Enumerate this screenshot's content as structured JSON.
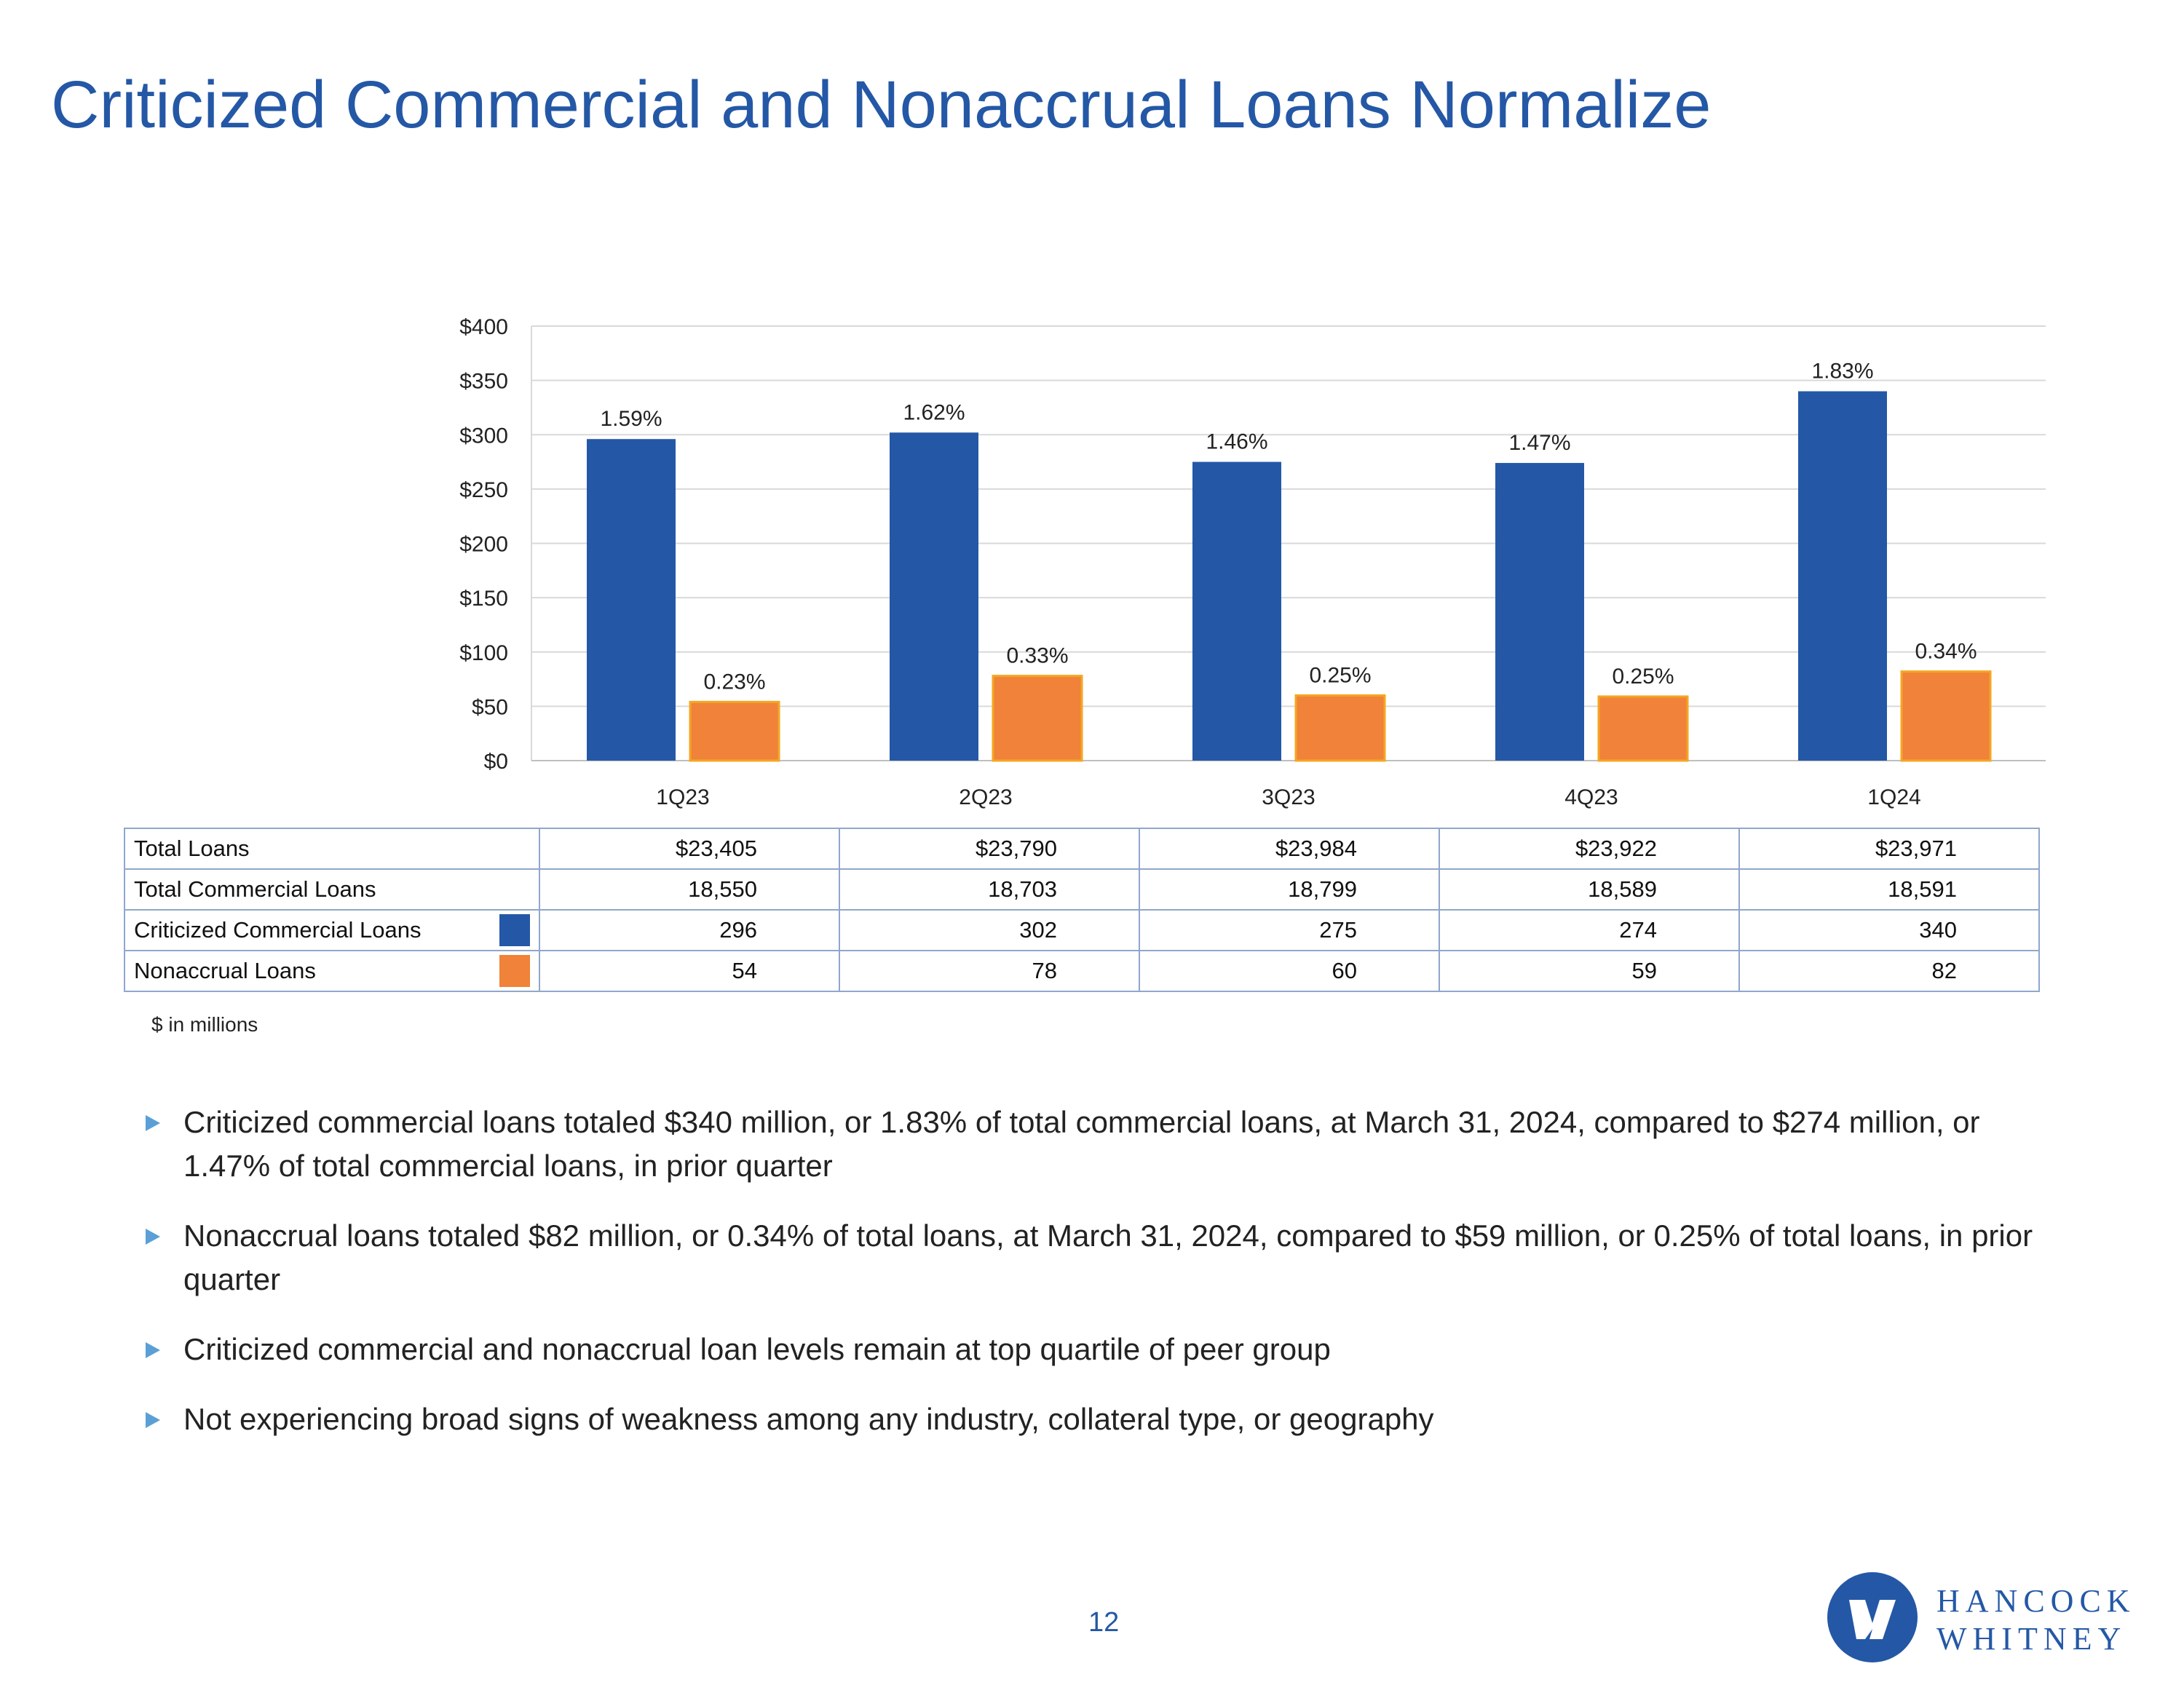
{
  "title": "Criticized Commercial and Nonaccrual Loans Normalize",
  "colors": {
    "title": "#2458a6",
    "criticized": "#2458a6",
    "nonaccrual": "#f08239",
    "grid": "#d9d9d9"
  },
  "chart_data": {
    "type": "bar",
    "categories": [
      "1Q23",
      "2Q23",
      "3Q23",
      "4Q23",
      "1Q24"
    ],
    "series": [
      {
        "name": "Criticized Commercial Loans",
        "values": [
          296,
          302,
          275,
          274,
          340
        ],
        "labels": [
          "1.59%",
          "1.62%",
          "1.46%",
          "1.47%",
          "1.83%"
        ]
      },
      {
        "name": "Nonaccrual Loans",
        "values": [
          54,
          78,
          60,
          59,
          82
        ],
        "labels": [
          "0.23%",
          "0.33%",
          "0.25%",
          "0.25%",
          "0.34%"
        ]
      }
    ],
    "ylim": [
      0,
      400
    ],
    "yticks": [
      0,
      50,
      100,
      150,
      200,
      250,
      300,
      350,
      400
    ],
    "ytick_labels": [
      "$0",
      "$50",
      "$100",
      "$150",
      "$200",
      "$250",
      "$300",
      "$350",
      "$400"
    ],
    "grid": true
  },
  "table": {
    "rows": [
      {
        "label": "Total Loans",
        "values": [
          "$23,405",
          "$23,790",
          "$23,984",
          "$23,922",
          "$23,971"
        ]
      },
      {
        "label": "Total Commercial Loans",
        "values": [
          "18,550",
          "18,703",
          "18,799",
          "18,589",
          "18,591"
        ]
      },
      {
        "label": "Criticized Commercial Loans",
        "values": [
          "296",
          "302",
          "275",
          "274",
          "340"
        ]
      },
      {
        "label": "Nonaccrual Loans",
        "values": [
          "54",
          "78",
          "60",
          "59",
          "82"
        ]
      }
    ],
    "footnote": "$ in millions"
  },
  "bullets": [
    "Criticized commercial loans totaled $340 million, or 1.83% of total commercial loans, at March 31, 2024, compared to $274 million, or 1.47% of total commercial loans, in prior quarter",
    "Nonaccrual loans totaled $82 million, or 0.34% of total loans, at March 31, 2024, compared to $59 million, or 0.25% of total loans, in prior quarter",
    "Criticized commercial and nonaccrual loan levels remain at top quartile of peer group",
    "Not experiencing broad signs of weakness among any industry, collateral type, or geography"
  ],
  "page_number": "12",
  "logo": {
    "line1": "HANCOCK",
    "line2": "WHITNEY",
    "mark_icon": "hancock-whitney-mark-icon"
  }
}
